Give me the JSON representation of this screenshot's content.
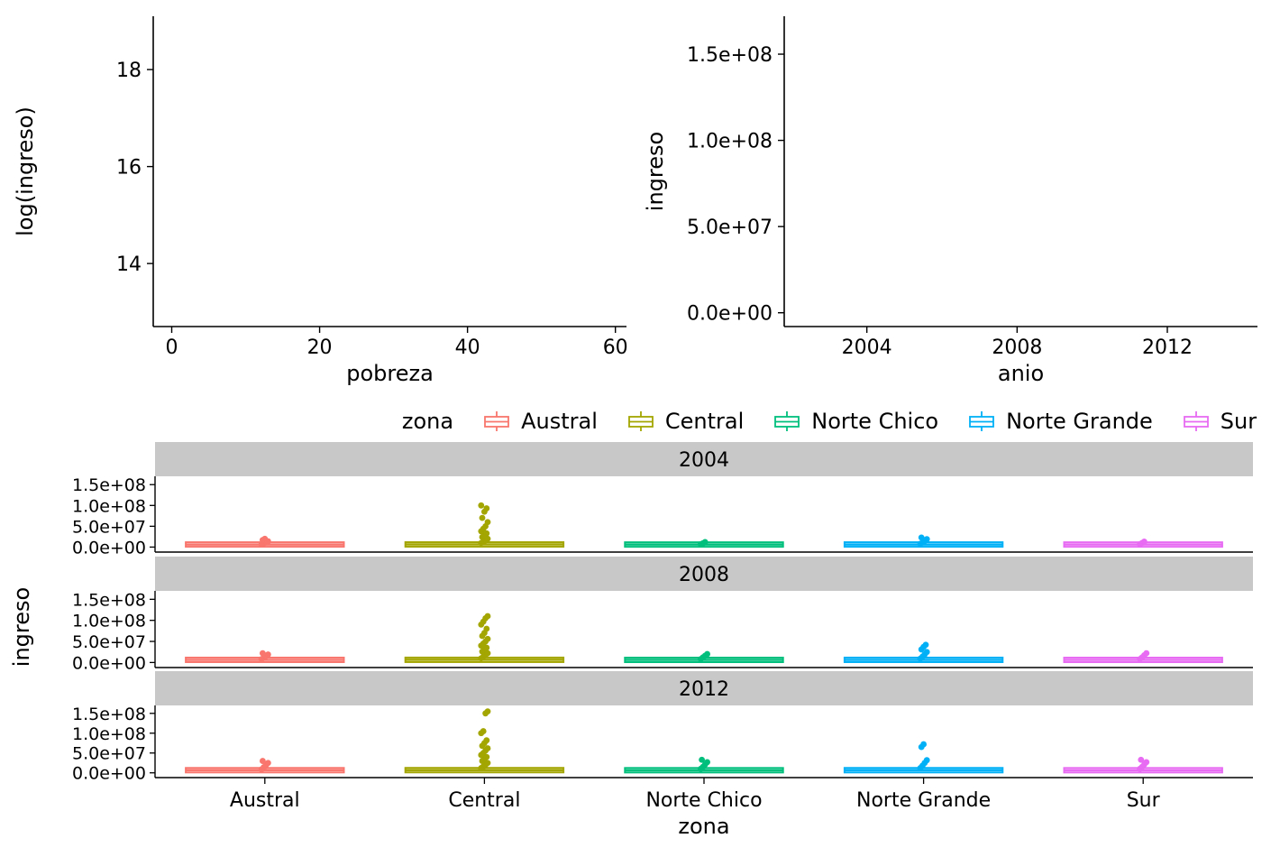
{
  "figure": {
    "background": "#FFFFFF",
    "text_color": "#000000",
    "axis_color": "#000000",
    "strip_color": "#C8C8C8"
  },
  "chart_data": [
    {
      "id": "pobreza_scatter",
      "type": "scatter",
      "title": "",
      "xlabel": "pobreza",
      "ylabel": "log(ingreso)",
      "xlim": [
        -2.5,
        61.5
      ],
      "ylim": [
        12.7,
        19.1
      ],
      "xticks": {
        "values": [
          0,
          20,
          40,
          60
        ],
        "labels": [
          "0",
          "20",
          "40",
          "60"
        ]
      },
      "yticks": {
        "values": [
          14,
          16,
          18
        ],
        "labels": [
          "14",
          "16",
          "18"
        ]
      },
      "grid": false,
      "legend_position": "none",
      "points": []
    },
    {
      "id": "anio_scatter",
      "type": "scatter",
      "title": "",
      "xlabel": "anio",
      "ylabel": "ingreso",
      "xlim": [
        2001.8,
        2014.4
      ],
      "ylim": [
        -8000000.0,
        172000000.0
      ],
      "xticks": {
        "values": [
          2004,
          2008,
          2012
        ],
        "labels": [
          "2004",
          "2008",
          "2012"
        ]
      },
      "yticks": {
        "values": [
          0,
          50000000.0,
          100000000.0,
          150000000.0
        ],
        "labels": [
          "0.0e+00",
          "5.0e+07",
          "1.0e+08",
          "1.5e+08"
        ]
      },
      "grid": false,
      "legend_position": "none",
      "points": []
    },
    {
      "id": "ingreso_by_zona_faceted_boxplot",
      "type": "boxplot",
      "title": "",
      "xlabel": "zona",
      "ylabel": "ingreso",
      "grid": false,
      "legend_position": "top",
      "legend": {
        "title": "zona",
        "entries": [
          {
            "label": "Austral",
            "color": "#F8766D"
          },
          {
            "label": "Central",
            "color": "#A3A500"
          },
          {
            "label": "Norte Chico",
            "color": "#00BF7D"
          },
          {
            "label": "Norte Grande",
            "color": "#00B0F6"
          },
          {
            "label": "Sur",
            "color": "#E76BF3"
          }
        ]
      },
      "categories": [
        "Austral",
        "Central",
        "Norte Chico",
        "Norte Grande",
        "Sur"
      ],
      "ylim": [
        -12000000.0,
        170000000.0
      ],
      "yticks": {
        "values": [
          0,
          50000000.0,
          100000000.0,
          150000000.0
        ],
        "labels": [
          "0.0e+00",
          "5.0e+07",
          "1.0e+08",
          "1.5e+08"
        ]
      },
      "facets": [
        {
          "label": "2004",
          "boxes": [
            {
              "category": "Austral",
              "q1": 800000.0,
              "median": 2200000.0,
              "q3": 4500000.0,
              "whisker_low": 0,
              "whisker_high": 6000000.0,
              "outliers": [
                7000000.0,
                9000000.0,
                11000000.0,
                14000000.0,
                17000000.0,
                20000000.0
              ]
            },
            {
              "category": "Central",
              "q1": 900000.0,
              "median": 2500000.0,
              "q3": 5000000.0,
              "whisker_low": 0,
              "whisker_high": 7000000.0,
              "outliers": [
                10000000.0,
                13000000.0,
                16000000.0,
                20000000.0,
                24000000.0,
                28000000.0,
                33000000.0,
                38000000.0,
                44000000.0,
                50000000.0,
                60000000.0,
                70000000.0,
                85000000.0,
                93000000.0,
                100000000.0
              ]
            },
            {
              "category": "Norte Chico",
              "q1": 700000.0,
              "median": 2000000.0,
              "q3": 4000000.0,
              "whisker_low": 0,
              "whisker_high": 5500000.0,
              "outliers": [
                7000000.0,
                9000000.0,
                12000000.0
              ]
            },
            {
              "category": "Norte Grande",
              "q1": 800000.0,
              "median": 2200000.0,
              "q3": 4500000.0,
              "whisker_low": 0,
              "whisker_high": 6000000.0,
              "outliers": [
                8000000.0,
                11000000.0,
                15000000.0,
                19000000.0,
                23000000.0
              ]
            },
            {
              "category": "Sur",
              "q1": 700000.0,
              "median": 2000000.0,
              "q3": 4000000.0,
              "whisker_low": 0,
              "whisker_high": 5500000.0,
              "outliers": [
                7000000.0,
                10000000.0,
                13000000.0
              ]
            }
          ]
        },
        {
          "label": "2008",
          "boxes": [
            {
              "category": "Austral",
              "q1": 900000.0,
              "median": 2500000.0,
              "q3": 5000000.0,
              "whisker_low": 0,
              "whisker_high": 7000000.0,
              "outliers": [
                8000000.0,
                11000000.0,
                15000000.0,
                19000000.0,
                22000000.0
              ]
            },
            {
              "category": "Central",
              "q1": 1000000.0,
              "median": 2800000.0,
              "q3": 5500000.0,
              "whisker_low": 0,
              "whisker_high": 8000000.0,
              "outliers": [
                10000000.0,
                14000000.0,
                18000000.0,
                22000000.0,
                26000000.0,
                30000000.0,
                35000000.0,
                40000000.0,
                45000000.0,
                50000000.0,
                56000000.0,
                63000000.0,
                70000000.0,
                80000000.0,
                90000000.0,
                97000000.0,
                105000000.0,
                110000000.0
              ]
            },
            {
              "category": "Norte Chico",
              "q1": 800000.0,
              "median": 2200000.0,
              "q3": 4500000.0,
              "whisker_low": 0,
              "whisker_high": 6000000.0,
              "outliers": [
                8000000.0,
                12000000.0,
                16000000.0,
                20000000.0
              ]
            },
            {
              "category": "Norte Grande",
              "q1": 900000.0,
              "median": 2500000.0,
              "q3": 5000000.0,
              "whisker_low": 0,
              "whisker_high": 7000000.0,
              "outliers": [
                9000000.0,
                14000000.0,
                19000000.0,
                25000000.0,
                31000000.0,
                37000000.0,
                42000000.0
              ]
            },
            {
              "category": "Sur",
              "q1": 800000.0,
              "median": 2200000.0,
              "q3": 4500000.0,
              "whisker_low": 0,
              "whisker_high": 6000000.0,
              "outliers": [
                8000000.0,
                12000000.0,
                17000000.0,
                22000000.0
              ]
            }
          ]
        },
        {
          "label": "2012",
          "boxes": [
            {
              "category": "Austral",
              "q1": 1000000.0,
              "median": 2800000.0,
              "q3": 5500000.0,
              "whisker_low": 0,
              "whisker_high": 8000000.0,
              "outliers": [
                9000000.0,
                14000000.0,
                19000000.0,
                25000000.0,
                30000000.0
              ]
            },
            {
              "category": "Central",
              "q1": 1100000.0,
              "median": 3000000.0,
              "q3": 6000000.0,
              "whisker_low": 0,
              "whisker_high": 9000000.0,
              "outliers": [
                12000000.0,
                16000000.0,
                20000000.0,
                25000000.0,
                30000000.0,
                35000000.0,
                40000000.0,
                45000000.0,
                50000000.0,
                56000000.0,
                62000000.0,
                68000000.0,
                75000000.0,
                82000000.0,
                100000000.0,
                105000000.0,
                150000000.0,
                155000000.0
              ]
            },
            {
              "category": "Norte Chico",
              "q1": 900000.0,
              "median": 2500000.0,
              "q3": 5000000.0,
              "whisker_low": 0,
              "whisker_high": 7000000.0,
              "outliers": [
                10000000.0,
                15000000.0,
                21000000.0,
                27000000.0,
                33000000.0
              ]
            },
            {
              "category": "Norte Grande",
              "q1": 1000000.0,
              "median": 2800000.0,
              "q3": 5500000.0,
              "whisker_low": 0,
              "whisker_high": 8000000.0,
              "outliers": [
                12000000.0,
                18000000.0,
                25000000.0,
                32000000.0,
                65000000.0,
                72000000.0
              ]
            },
            {
              "category": "Sur",
              "q1": 900000.0,
              "median": 2500000.0,
              "q3": 5000000.0,
              "whisker_low": 0,
              "whisker_high": 7000000.0,
              "outliers": [
                10000000.0,
                15000000.0,
                21000000.0,
                27000000.0,
                33000000.0
              ]
            }
          ]
        }
      ]
    }
  ]
}
